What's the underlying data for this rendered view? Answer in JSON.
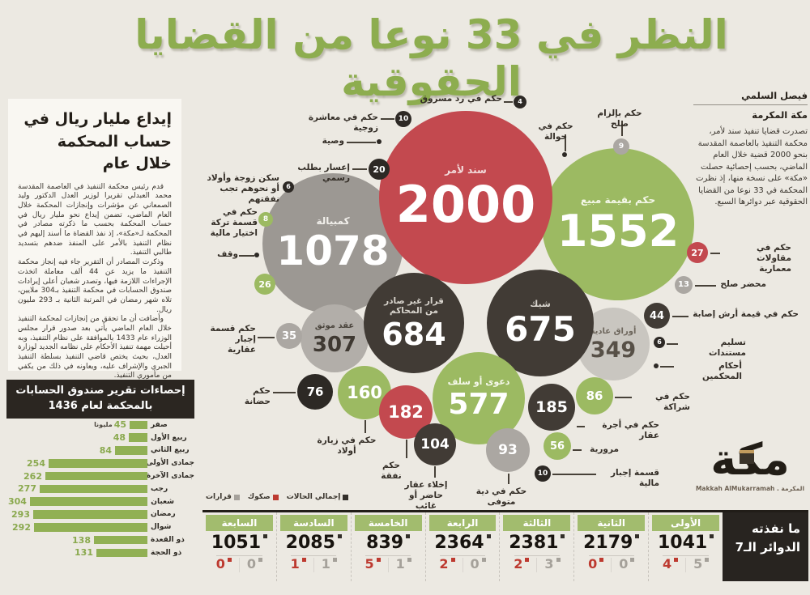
{
  "title": "النظر في 33 نوعا من القضايا الحقوقية",
  "palette": {
    "red": "#c3494f",
    "green": "#9cba62",
    "dark": "#413b35",
    "black": "#2d2925",
    "gray": "#9c9893",
    "gray_md": "#b2aea9",
    "gray_lt": "#c9c6c0",
    "gray_sm": "#aba7a2",
    "accent_green": "#8dad4f",
    "bar_green": "#91b054",
    "header_green": "#a2bc6e",
    "red_text": "#bd3a30",
    "gray_text": "#a5a19a"
  },
  "article": {
    "heading": "إيداع مليار ريال في حساب المحكمة خلال عام",
    "paragraphs": [
      "قدم رئيس محكمة التنفيذ في العاصمة المقدسة محمد العبدلي تقريرا لوزير العدل الدكتور وليد الصمعاني عن مؤشرات وإنجازات المحكمة خلال العام الماضي، تضمن إيداع نحو مليار ريال في حساب المحكمة بحسب ما ذكرته مصادر في المحكمة لـ«مكة»، إذ نفذ القضاة ما أسند إليهم في نظام التنفيذ بالأمر على المنفذ ضدهم بتسديد طالبي التنفيذ.",
      "وذكرت المصادر أن التقرير جاء فيه إنجاز محكمة التنفيذ ما يزيد عن 44 ألف معاملة اتخذت الإجراءات اللازمة فيها، وتصدر شعبان أعلى إيرادات صندوق الحسابات في محكمة التنفيذ بـ304 ملايين، تلاه شهر رمضان في المرتبة الثانية بـ 293 مليون ريال.",
      "وأضافت أن ما تحقق من إنجازات لمحكمة التنفيذ خلال العام الماضي يأتي بعد صدور قرار مجلس الوزراء عام 1433 بالموافقة على نظام التنفيذ، وبه أحيلت مهمة تنفيذ الأحكام على نظامه الجديد لوزارة العدل، بحيث يختص قاضي التنفيذ بسلطة التنفيذ الجبري والإشراف عليه، ويعاونه في ذلك من يكفي من مأموري التنفيذ."
    ]
  },
  "byline": {
    "author": "فيصل السلمي",
    "city": "مكة المكرمة",
    "intro": "تصدرت قضايا تنفيذ سند لأمر، محكمة التنفيذ بالعاصمة المقدسة بنحو 2000 قضية خلال العام الماضي، بحسب إحصائية حصلت «مكة» على نسخة منها، إذ نظرت المحكمة في 33 نوعا من القضايا الحقوقية عبر دوائرها السبع."
  },
  "logo": {
    "name": "مكة",
    "subtitle": "Makkah AlMukarramah . المكرمة"
  },
  "chart_data": [
    {
      "type": "bubble",
      "bubbles": [
        {
          "label": "سند لأمر",
          "value": 2000,
          "color": "red"
        },
        {
          "label": "حكم بقيمة مبيع",
          "value": 1552,
          "color": "green"
        },
        {
          "label": "كمبيالة",
          "value": 1078,
          "color": "gray"
        },
        {
          "label": "قرار غير صادر من المحاكم",
          "value": 684,
          "color": "dark"
        },
        {
          "label": "شيك",
          "value": 675,
          "color": "dark"
        },
        {
          "label": "دعوى أو سلف",
          "value": 577,
          "color": "green"
        },
        {
          "label": "أوراق عادية",
          "value": 349,
          "color": "gray_lt"
        },
        {
          "label": "عقد موثق",
          "value": 307,
          "color": "gray_md"
        },
        {
          "label": "حكم في أجرة عقار",
          "value": 185,
          "color": "dark"
        },
        {
          "label": "حكم نفقة",
          "value": 182,
          "color": "red"
        },
        {
          "label": "حكم في زيارة أولاد",
          "value": 160,
          "color": "green"
        },
        {
          "label": "إخلاء عقار حاضر أو غائب",
          "value": 104,
          "color": "dark"
        },
        {
          "label": "حكم في دية متوفى",
          "value": 93,
          "color": "gray_sm"
        },
        {
          "label": "حكم في شراكة",
          "value": 86,
          "color": "green"
        },
        {
          "label": "حكم حضانة",
          "value": 76,
          "color": "black"
        },
        {
          "label": "مرورية",
          "value": 56,
          "color": "green"
        },
        {
          "label": "حكم في قيمة أرش إصابة",
          "value": 44,
          "color": "dark"
        },
        {
          "label": "حكم قسمة إجبار عقارية",
          "value": 35,
          "color": "gray_sm"
        },
        {
          "label": "حكم في مقاولات معمارية",
          "value": 27,
          "color": "red"
        },
        {
          "label": "وقف",
          "value": 26,
          "color": "green"
        },
        {
          "label": "إعسار بطلب رسمي",
          "value": 20,
          "color": "black"
        },
        {
          "label": "محضر صلح",
          "value": 13,
          "color": "gray_sm"
        },
        {
          "label": "حكم في معاشرة زوجية",
          "value": 10,
          "color": "black"
        },
        {
          "label": "قسمة إجبار مالية",
          "value": 10,
          "color": "black"
        },
        {
          "label": "حكم بإلزام صلح",
          "value": 9,
          "color": "gray_sm"
        },
        {
          "label": "حكم في قسمة تركة اختيار مالية",
          "value": 8,
          "color": "green"
        },
        {
          "label": "سكن زوجة وأولاد أو نحوهم تجب نفقتهم",
          "value": 6,
          "color": "black"
        },
        {
          "label": "تسليم مستندات",
          "value": 6,
          "color": "black"
        },
        {
          "label": "حكم في رد مسروق",
          "value": 4,
          "color": "black"
        },
        {
          "label": "وصية",
          "value": null,
          "color": "black"
        },
        {
          "label": "حكم في حوالة",
          "value": null,
          "color": "black"
        },
        {
          "label": "أحكام المحكمين",
          "value": null,
          "color": "black"
        }
      ]
    },
    {
      "type": "bar",
      "title_line1": "إحصاءات تقرير صندوق الحسابات",
      "title_line2": "بالمحكمة لعام 1436",
      "unit": "مليونا",
      "categories": [
        "صفر",
        "ربيع الأول",
        "ربيع الثاني",
        "جمادى الأولى",
        "جمادى الآخرة",
        "رجب",
        "شعبان",
        "رمضان",
        "شوال",
        "ذو القعدة",
        "ذو الحجة"
      ],
      "values": [
        45,
        48,
        84,
        254,
        262,
        277,
        304,
        293,
        292,
        138,
        131
      ],
      "xlim": [
        0,
        304
      ]
    },
    {
      "type": "table",
      "title_line1": "ما نفذته",
      "title_line2": "الدوائر الـ7",
      "legend": {
        "total": "إجمالي الحالات",
        "deeds": "صكوك",
        "decisions": "قرارات"
      },
      "columns": [
        {
          "name": "الأولى",
          "total": 1041,
          "decisions": 5,
          "deeds": 4
        },
        {
          "name": "الثانية",
          "total": 2179,
          "decisions": 0,
          "deeds": 0
        },
        {
          "name": "الثالثة",
          "total": 2381,
          "decisions": 3,
          "deeds": 2
        },
        {
          "name": "الرابعة",
          "total": 2364,
          "decisions": 0,
          "deeds": 2
        },
        {
          "name": "الخامسة",
          "total": 839,
          "decisions": 1,
          "deeds": 5
        },
        {
          "name": "السادسة",
          "total": 2085,
          "decisions": 1,
          "deeds": 1
        },
        {
          "name": "السابعة",
          "total": 1051,
          "decisions": 0,
          "deeds": 0
        }
      ]
    }
  ]
}
